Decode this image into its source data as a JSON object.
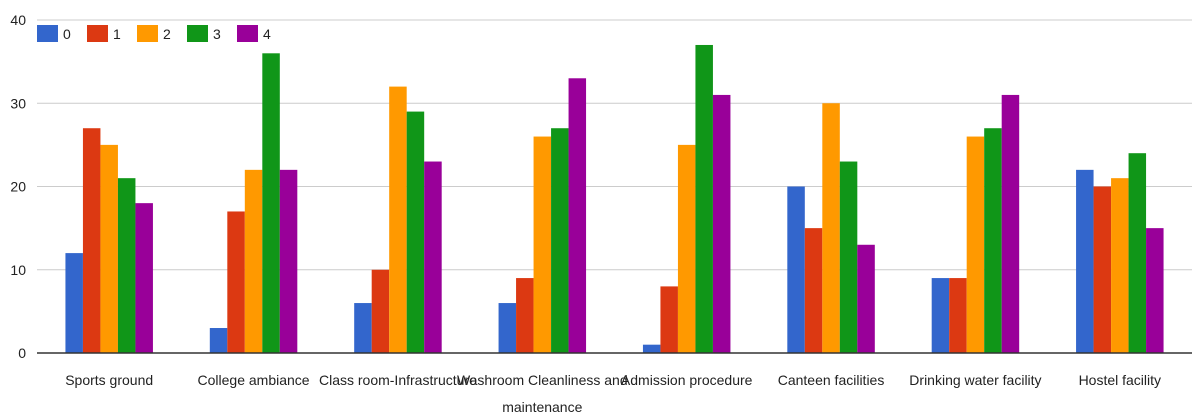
{
  "chart_data": {
    "type": "bar",
    "categories": [
      "Sports ground",
      "College ambiance",
      "Class room-Infrastructure",
      "Washroom Cleanliness and maintenance",
      "Admission procedure",
      "Canteen facilities",
      "Drinking water facility",
      "Hostel facility"
    ],
    "category_label_lines": [
      [
        "Sports ground"
      ],
      [
        "College ambiance"
      ],
      [
        "Class room-Infrastructure"
      ],
      [
        "Washroom Cleanliness and",
        "maintenance"
      ],
      [
        "Admission procedure"
      ],
      [
        "Canteen facilities"
      ],
      [
        "Drinking water facility"
      ],
      [
        "Hostel facility"
      ]
    ],
    "series": [
      {
        "name": "0",
        "color": "#3366cc",
        "values": [
          12,
          3,
          6,
          6,
          1,
          20,
          9,
          22
        ]
      },
      {
        "name": "1",
        "color": "#dc3912",
        "values": [
          27,
          17,
          10,
          9,
          8,
          15,
          9,
          20
        ]
      },
      {
        "name": "2",
        "color": "#ff9900",
        "values": [
          25,
          22,
          32,
          26,
          25,
          30,
          26,
          21
        ]
      },
      {
        "name": "3",
        "color": "#109618",
        "values": [
          21,
          36,
          29,
          27,
          37,
          23,
          27,
          24
        ]
      },
      {
        "name": "4",
        "color": "#990099",
        "values": [
          18,
          22,
          23,
          33,
          31,
          13,
          31,
          15
        ]
      }
    ],
    "yticks": [
      0,
      10,
      20,
      30,
      40
    ],
    "ylim": [
      0,
      40
    ],
    "grid": true,
    "legend_position": "top-left",
    "title": "",
    "xlabel": "",
    "ylabel": ""
  }
}
